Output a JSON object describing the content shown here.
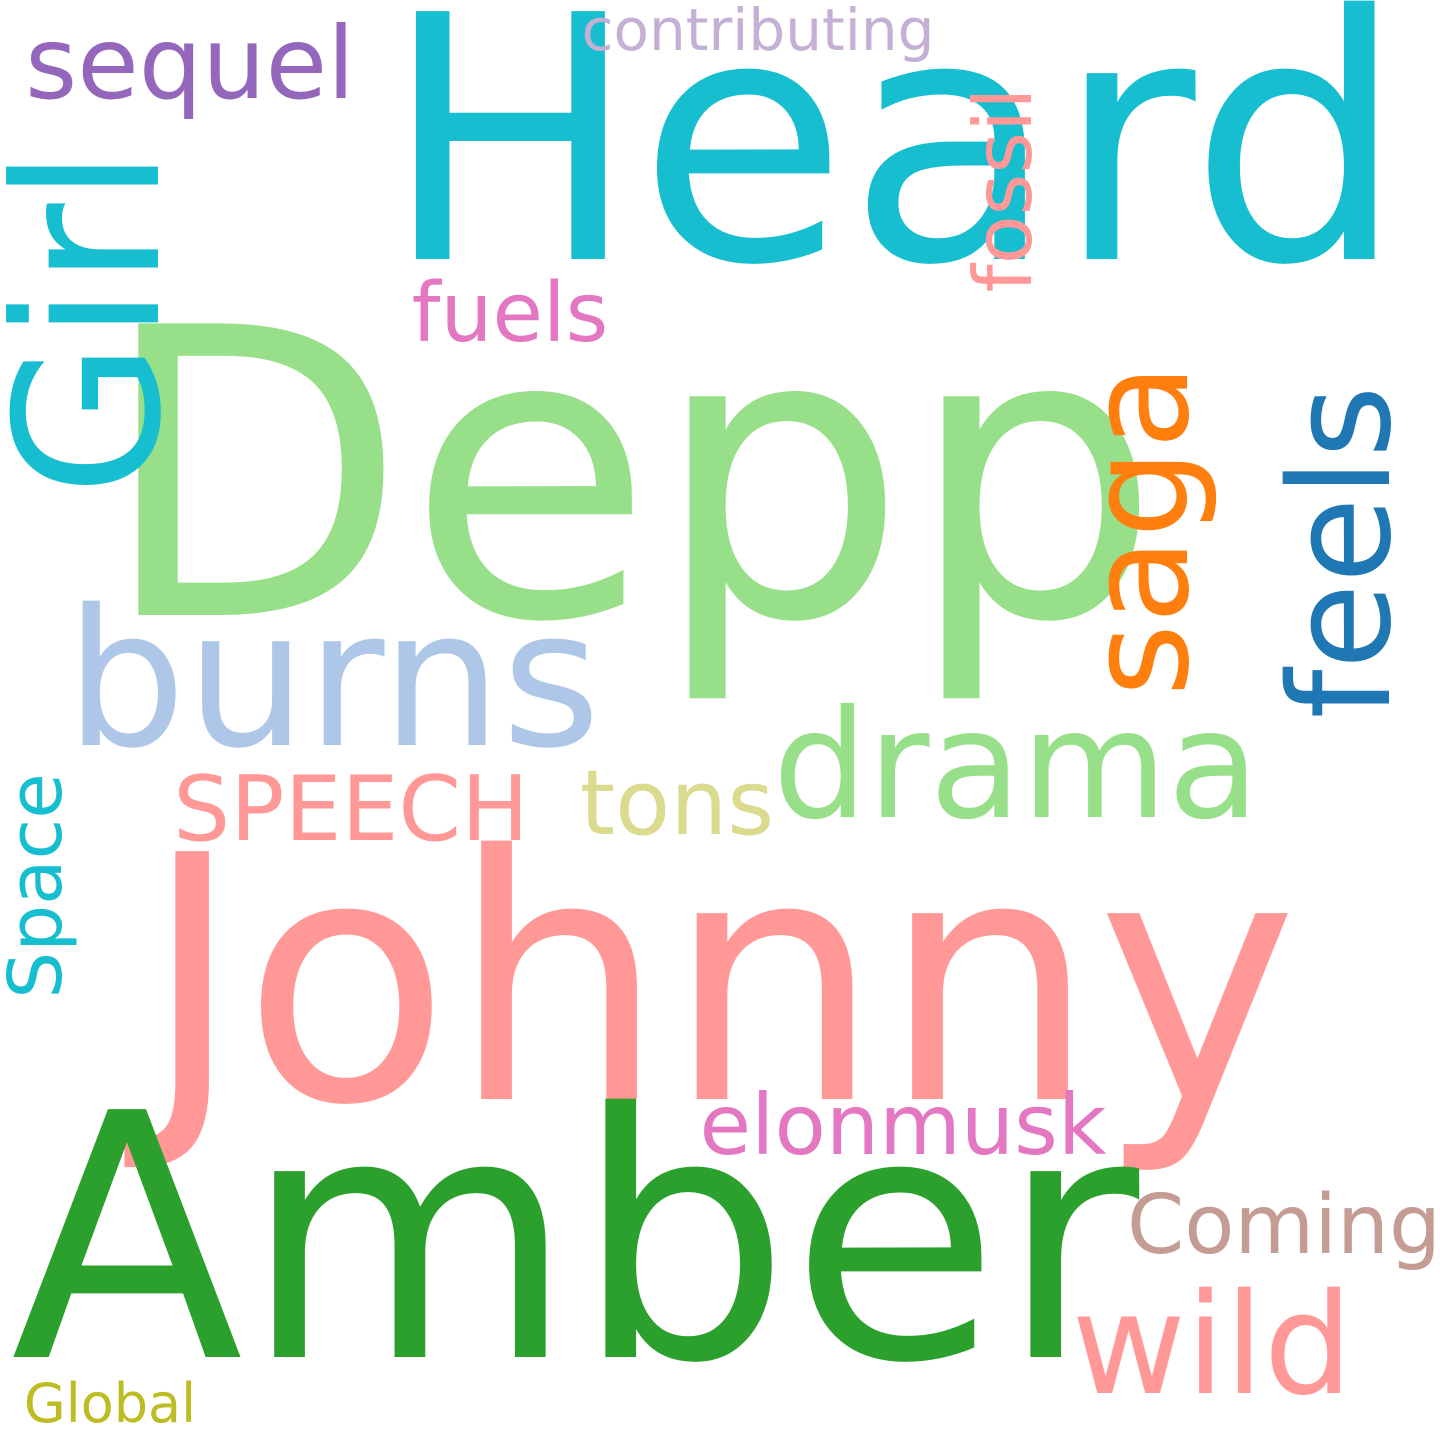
{
  "words": [
    {
      "id": "heard",
      "text": "Heard",
      "color": "#17becf",
      "orientation": "horizontal"
    },
    {
      "id": "depp",
      "text": "Depp",
      "color": "#98df8a",
      "orientation": "horizontal"
    },
    {
      "id": "johnny",
      "text": "Johnny",
      "color": "#ff9896",
      "orientation": "horizontal"
    },
    {
      "id": "amber",
      "text": "Amber",
      "color": "#2ca02c",
      "orientation": "horizontal"
    },
    {
      "id": "burns",
      "text": "burns",
      "color": "#aec7e8",
      "orientation": "horizontal"
    },
    {
      "id": "girl",
      "text": "Girl",
      "color": "#17becf",
      "orientation": "vertical"
    },
    {
      "id": "sequel",
      "text": "sequel",
      "color": "#9467bd",
      "orientation": "horizontal"
    },
    {
      "id": "contributing",
      "text": "contributing",
      "color": "#c5b0d5",
      "orientation": "horizontal"
    },
    {
      "id": "fossil",
      "text": "fossil",
      "color": "#ff9896",
      "orientation": "vertical"
    },
    {
      "id": "fuels",
      "text": "fuels",
      "color": "#e377c2",
      "orientation": "horizontal"
    },
    {
      "id": "saga",
      "text": "saga",
      "color": "#ff7f0e",
      "orientation": "vertical"
    },
    {
      "id": "feels",
      "text": "feels",
      "color": "#1f77b4",
      "orientation": "vertical"
    },
    {
      "id": "drama",
      "text": "drama",
      "color": "#98df8a",
      "orientation": "horizontal"
    },
    {
      "id": "speech",
      "text": "SPEECH",
      "color": "#ff9896",
      "orientation": "horizontal"
    },
    {
      "id": "tons",
      "text": "tons",
      "color": "#dbdb8d",
      "orientation": "horizontal"
    },
    {
      "id": "space",
      "text": "Space",
      "color": "#17becf",
      "orientation": "vertical"
    },
    {
      "id": "elonmusk",
      "text": "elonmusk",
      "color": "#e377c2",
      "orientation": "horizontal"
    },
    {
      "id": "coming",
      "text": "Coming",
      "color": "#c49c94",
      "orientation": "horizontal"
    },
    {
      "id": "wild",
      "text": "wild",
      "color": "#ff9896",
      "orientation": "horizontal"
    },
    {
      "id": "global",
      "text": "Global",
      "color": "#bcbd22",
      "orientation": "horizontal"
    }
  ]
}
